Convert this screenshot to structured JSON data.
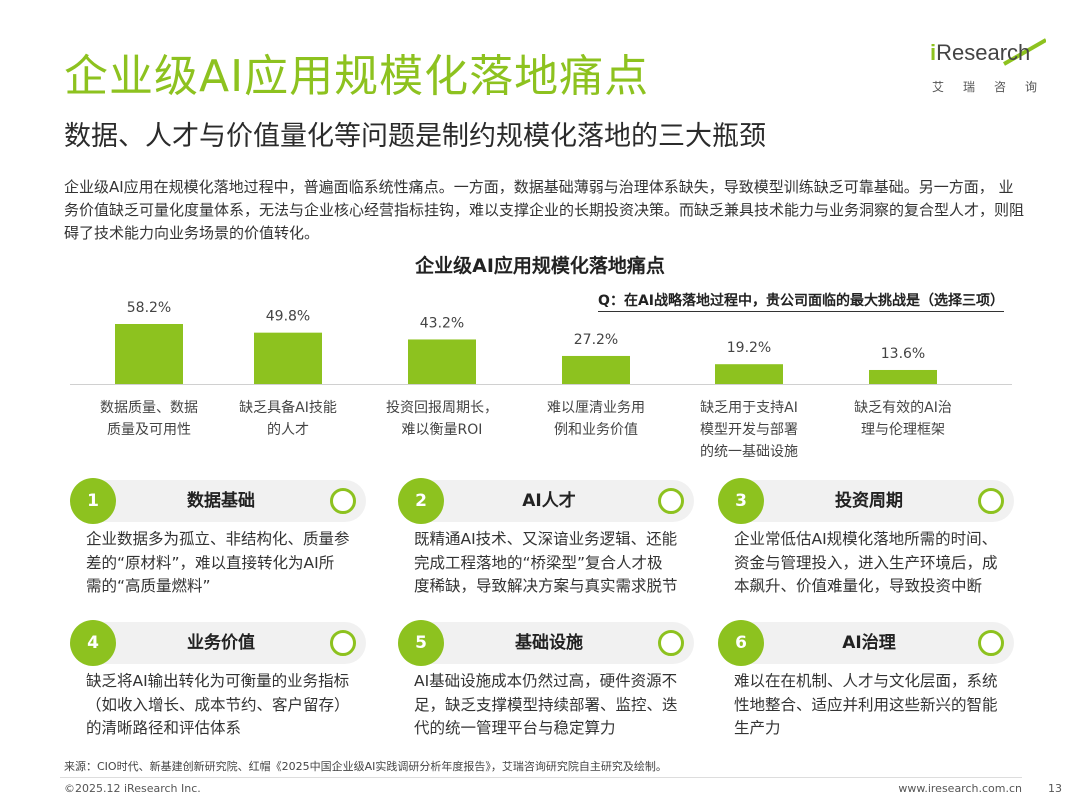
{
  "header": {
    "title": "企业级AI应用规模化落地痛点",
    "subtitle": "数据、人才与价值量化等问题是制约规模化落地的三大瓶颈"
  },
  "logo": {
    "brand_i": "i",
    "brand_rest": "Research",
    "sub": "艾瑞咨询"
  },
  "intro": "企业级AI应用在规模化落地过程中，普遍面临系统性痛点。一方面，数据基础薄弱与治理体系缺失，导致模型训练缺乏可靠基础。另一方面， 业务价值缺乏可量化度量体系，无法与企业核心经营指标挂钩，难以支撑企业的长期投资决策。而缺乏兼具技术能力与业务洞察的复合型人才，则阻碍了技术能力向业务场景的价值转化。",
  "chart_title": "企业级AI应用规模化落地痛点",
  "question": "Q：在AI战略落地过程中，贵公司面临的最大挑战是（选择三项）",
  "chart_data": {
    "type": "bar",
    "categories": [
      [
        "数据质量、数据",
        "质量及可用性"
      ],
      [
        "缺乏具备AI技能",
        "的人才"
      ],
      [
        "投资回报周期长，",
        "难以衡量ROI"
      ],
      [
        "难以厘清业务用",
        "例和业务价值"
      ],
      [
        "缺乏用于支持AI",
        "模型开发与部署",
        "的统一基础设施"
      ],
      [
        "缺乏有效的AI治",
        "理与伦理框架"
      ]
    ],
    "values": [
      58.2,
      49.8,
      43.2,
      27.2,
      19.2,
      13.6
    ],
    "value_labels": [
      "58.2%",
      "49.8%",
      "43.2%",
      "27.2%",
      "19.2%",
      "13.6%"
    ],
    "unit": "%",
    "bar_color": "#8dc21f",
    "ylim": [
      0,
      58.2
    ]
  },
  "cards": [
    {
      "num": "1",
      "name": "数据基础",
      "lines": [
        "企业数据多为孤立、非结构化、质量参",
        "差的“原材料”，难以直接转化为AI所",
        "需的“高质量燃料”"
      ]
    },
    {
      "num": "2",
      "name": "AI人才",
      "lines": [
        "既精通AI技术、又深谙业务逻辑、还能",
        "完成工程落地的“桥梁型”复合人才极",
        "度稀缺，导致解决方案与真实需求脱节"
      ]
    },
    {
      "num": "3",
      "name": "投资周期",
      "lines": [
        "企业常低估AI规模化落地所需的时间、",
        "资金与管理投入，进入生产环境后，成",
        "本飙升、价值难量化，导致投资中断"
      ]
    },
    {
      "num": "4",
      "name": "业务价值",
      "lines": [
        "缺乏将AI输出转化为可衡量的业务指标",
        "（如收入增长、成本节约、客户留存）",
        "的清晰路径和评估体系"
      ]
    },
    {
      "num": "5",
      "name": "基础设施",
      "lines": [
        "AI基础设施成本仍然过高，硬件资源不",
        "足，缺乏支撑模型持续部署、监控、迭",
        "代的统一管理平台与稳定算力"
      ]
    },
    {
      "num": "6",
      "name": "AI治理",
      "lines": [
        "难以在在机制、人才与文化层面，系统",
        "性地整合、适应并利用这些新兴的智能",
        "生产力"
      ]
    }
  ],
  "footer": {
    "source": "来源：CIO时代、新基建创新研究院、红帽《2025中国企业级AI实践调研分析年度报告》，艾瑞咨询研究院自主研究及绘制。",
    "copyright": "©2025.12 iResearch Inc.",
    "site": "www.iresearch.com.cn",
    "page": "13"
  },
  "colors": {
    "accent": "#8dc21f",
    "card_bg": "#f1f1f1",
    "text": "#333333"
  }
}
